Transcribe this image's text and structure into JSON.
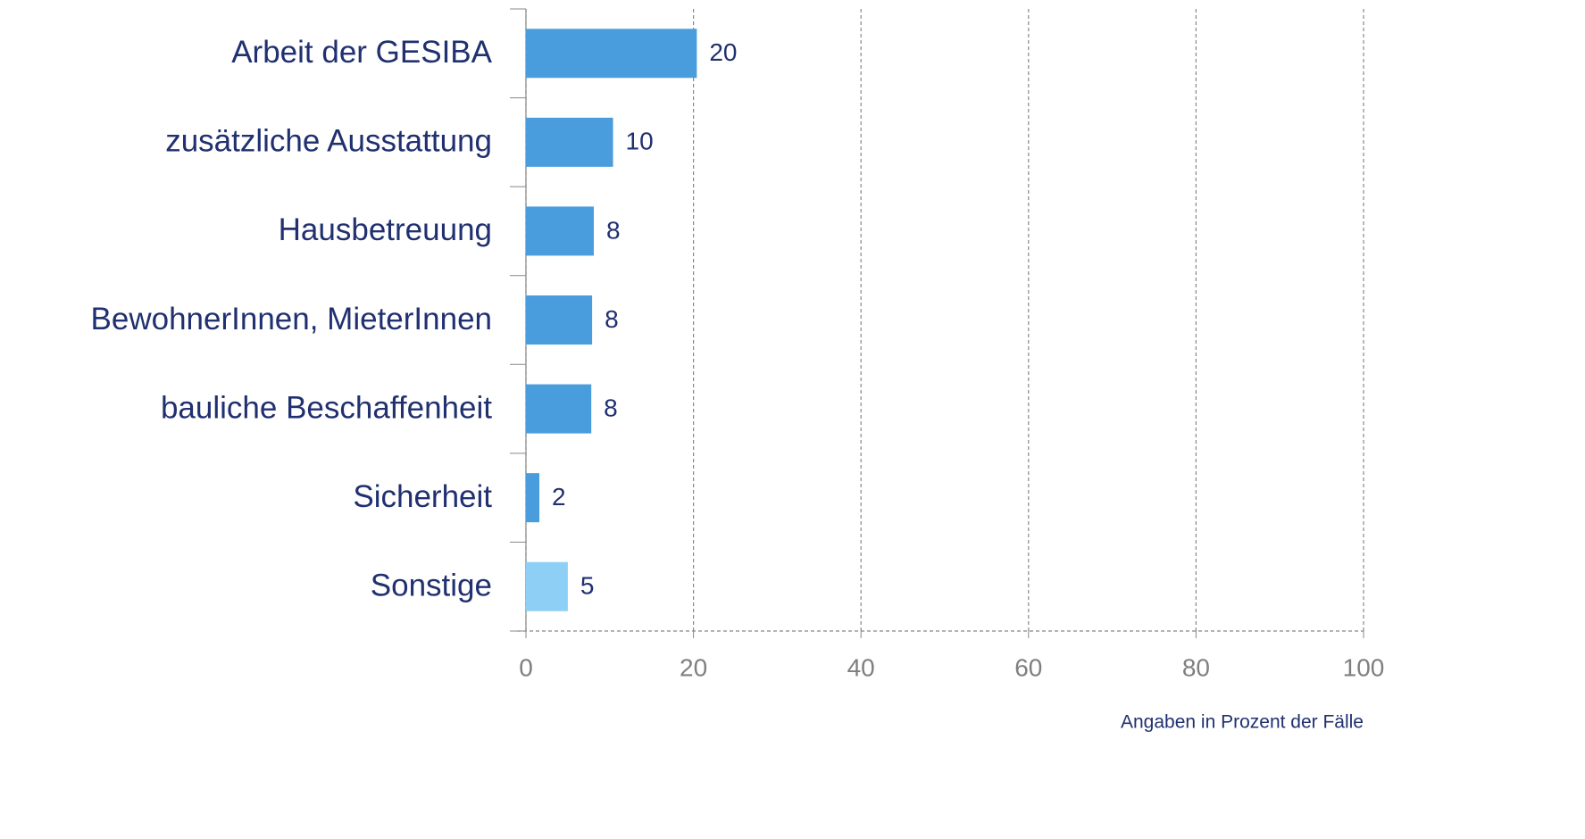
{
  "chart_data": {
    "type": "barh",
    "categories": [
      "Arbeit der GESIBA",
      "zusätzliche Ausstattung",
      "Hausbetreuung",
      "BewohnerInnen, MieterInnen",
      "bauliche Beschaffenheit",
      "Sicherheit",
      "Sonstige"
    ],
    "values": [
      20.4,
      10.4,
      8.1,
      7.9,
      7.8,
      1.6,
      5.0
    ],
    "value_labels": [
      "20",
      "10",
      "8",
      "8",
      "8",
      "2",
      "5"
    ],
    "colors": [
      "#4a9ddd",
      "#4a9ddd",
      "#4a9ddd",
      "#4a9ddd",
      "#4a9ddd",
      "#4a9ddd",
      "#8ecff5"
    ],
    "xlim": [
      0,
      100
    ],
    "xticks": [
      0,
      20,
      40,
      60,
      80,
      100
    ],
    "grid": true,
    "note": "Angaben in Prozent der Fälle"
  }
}
